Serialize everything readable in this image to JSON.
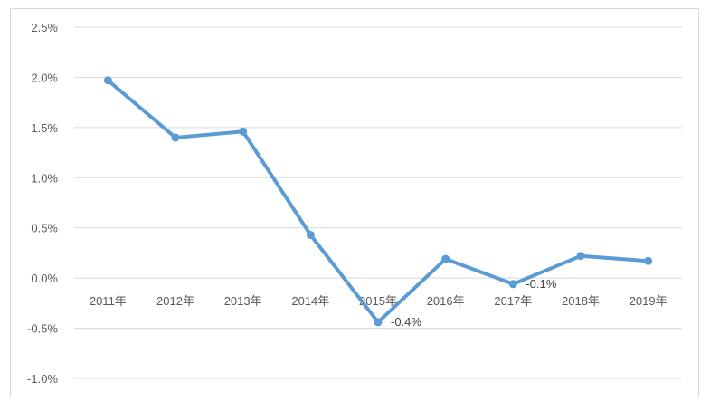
{
  "chart_data": {
    "type": "line",
    "categories": [
      "2011年",
      "2012年",
      "2013年",
      "2014年",
      "2015年",
      "2016年",
      "2017年",
      "2018年",
      "2019年"
    ],
    "series": [
      {
        "values": [
          1.97,
          1.4,
          1.46,
          0.43,
          -0.44,
          0.19,
          -0.06,
          0.22,
          0.17
        ]
      }
    ],
    "data_labels": [
      {
        "index": 4,
        "text": "-0.4%"
      },
      {
        "index": 6,
        "text": "-0.1%"
      }
    ],
    "y_ticks": [
      "2.5%",
      "2.0%",
      "1.5%",
      "1.0%",
      "0.5%",
      "0.0%",
      "-0.5%",
      "-1.0%"
    ],
    "ylim": [
      -1.0,
      2.5
    ],
    "grid": true,
    "legend": "none",
    "colors": {
      "line": "#5b9bd5",
      "grid": "#d9d9d9",
      "text": "#595959"
    }
  }
}
